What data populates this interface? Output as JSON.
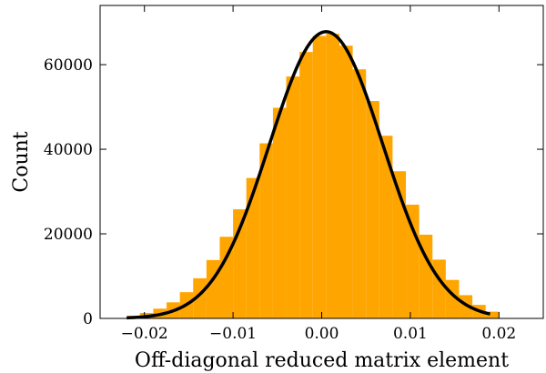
{
  "chart_data": {
    "type": "bar",
    "title": "",
    "xlabel": "Off-diagonal reduced matrix element",
    "ylabel": "Count",
    "xlim": [
      -0.025,
      0.025
    ],
    "ylim": [
      0,
      74000
    ],
    "xticks": [
      -0.02,
      -0.01,
      0.0,
      0.01,
      0.02
    ],
    "xtick_labels": [
      "−0.02",
      "−0.01",
      "0.00",
      "0.01",
      "0.02"
    ],
    "yticks": [
      0,
      20000,
      40000,
      60000
    ],
    "ytick_labels": [
      "0",
      "20000",
      "40000",
      "60000"
    ],
    "grid": false,
    "bin_edges": [
      -0.022,
      -0.0205,
      -0.019,
      -0.0175,
      -0.016,
      -0.0145,
      -0.013,
      -0.0115,
      -0.01,
      -0.0085,
      -0.007,
      -0.0055,
      -0.004,
      -0.0025,
      -0.001,
      0.0005,
      0.002,
      0.0035,
      0.005,
      0.0065,
      0.008,
      0.0095,
      0.011,
      0.0125,
      0.014,
      0.0155,
      0.017,
      0.0185,
      0.02
    ],
    "counts": [
      600,
      1300,
      2300,
      3800,
      6200,
      9500,
      13800,
      19300,
      25800,
      33200,
      41400,
      49800,
      57200,
      63000,
      66800,
      67300,
      64500,
      58900,
      51400,
      43200,
      34800,
      26900,
      19800,
      13900,
      9100,
      5500,
      3200,
      1600
    ],
    "fit_curve": {
      "type": "gaussian",
      "amplitude": 67800,
      "mean": 0.0005,
      "sigma": 0.0064,
      "x_range": [
        -0.022,
        0.019
      ]
    },
    "colors": {
      "bars": "#FFA500",
      "fit_line": "#000000"
    }
  }
}
